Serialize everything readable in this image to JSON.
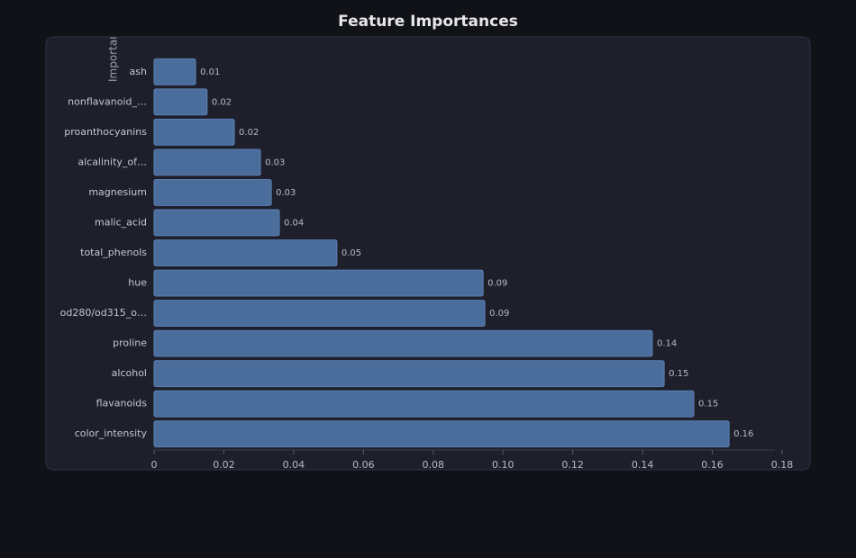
{
  "chart_data": {
    "type": "barh",
    "title": "Feature Importances",
    "y_label": "Importance",
    "categories": [
      "ash",
      "nonflavanoid_…",
      "proanthocyanins",
      "alcalinity_of…",
      "magnesium",
      "malic_acid",
      "total_phenols",
      "hue",
      "od280/od315_o…",
      "proline",
      "alcohol",
      "flavanoids",
      "color_intensity"
    ],
    "values": [
      0.0119,
      0.0152,
      0.023,
      0.0305,
      0.0336,
      0.0359,
      0.0524,
      0.0943,
      0.0948,
      0.1428,
      0.1462,
      0.1547,
      0.1648
    ],
    "value_labels": [
      "0.01",
      "0.02",
      "0.02",
      "0.03",
      "0.03",
      "0.04",
      "0.05",
      "0.09",
      "0.09",
      "0.14",
      "0.15",
      "0.15",
      "0.16"
    ],
    "color": "#4a6d9c",
    "xlim": [
      0,
      0.18
    ],
    "xticks": [
      0,
      0.02,
      0.04,
      0.06,
      0.08,
      {
        "value": 0.1,
        "label": "0.10"
      },
      0.12,
      0.14,
      0.16,
      0.18
    ]
  }
}
